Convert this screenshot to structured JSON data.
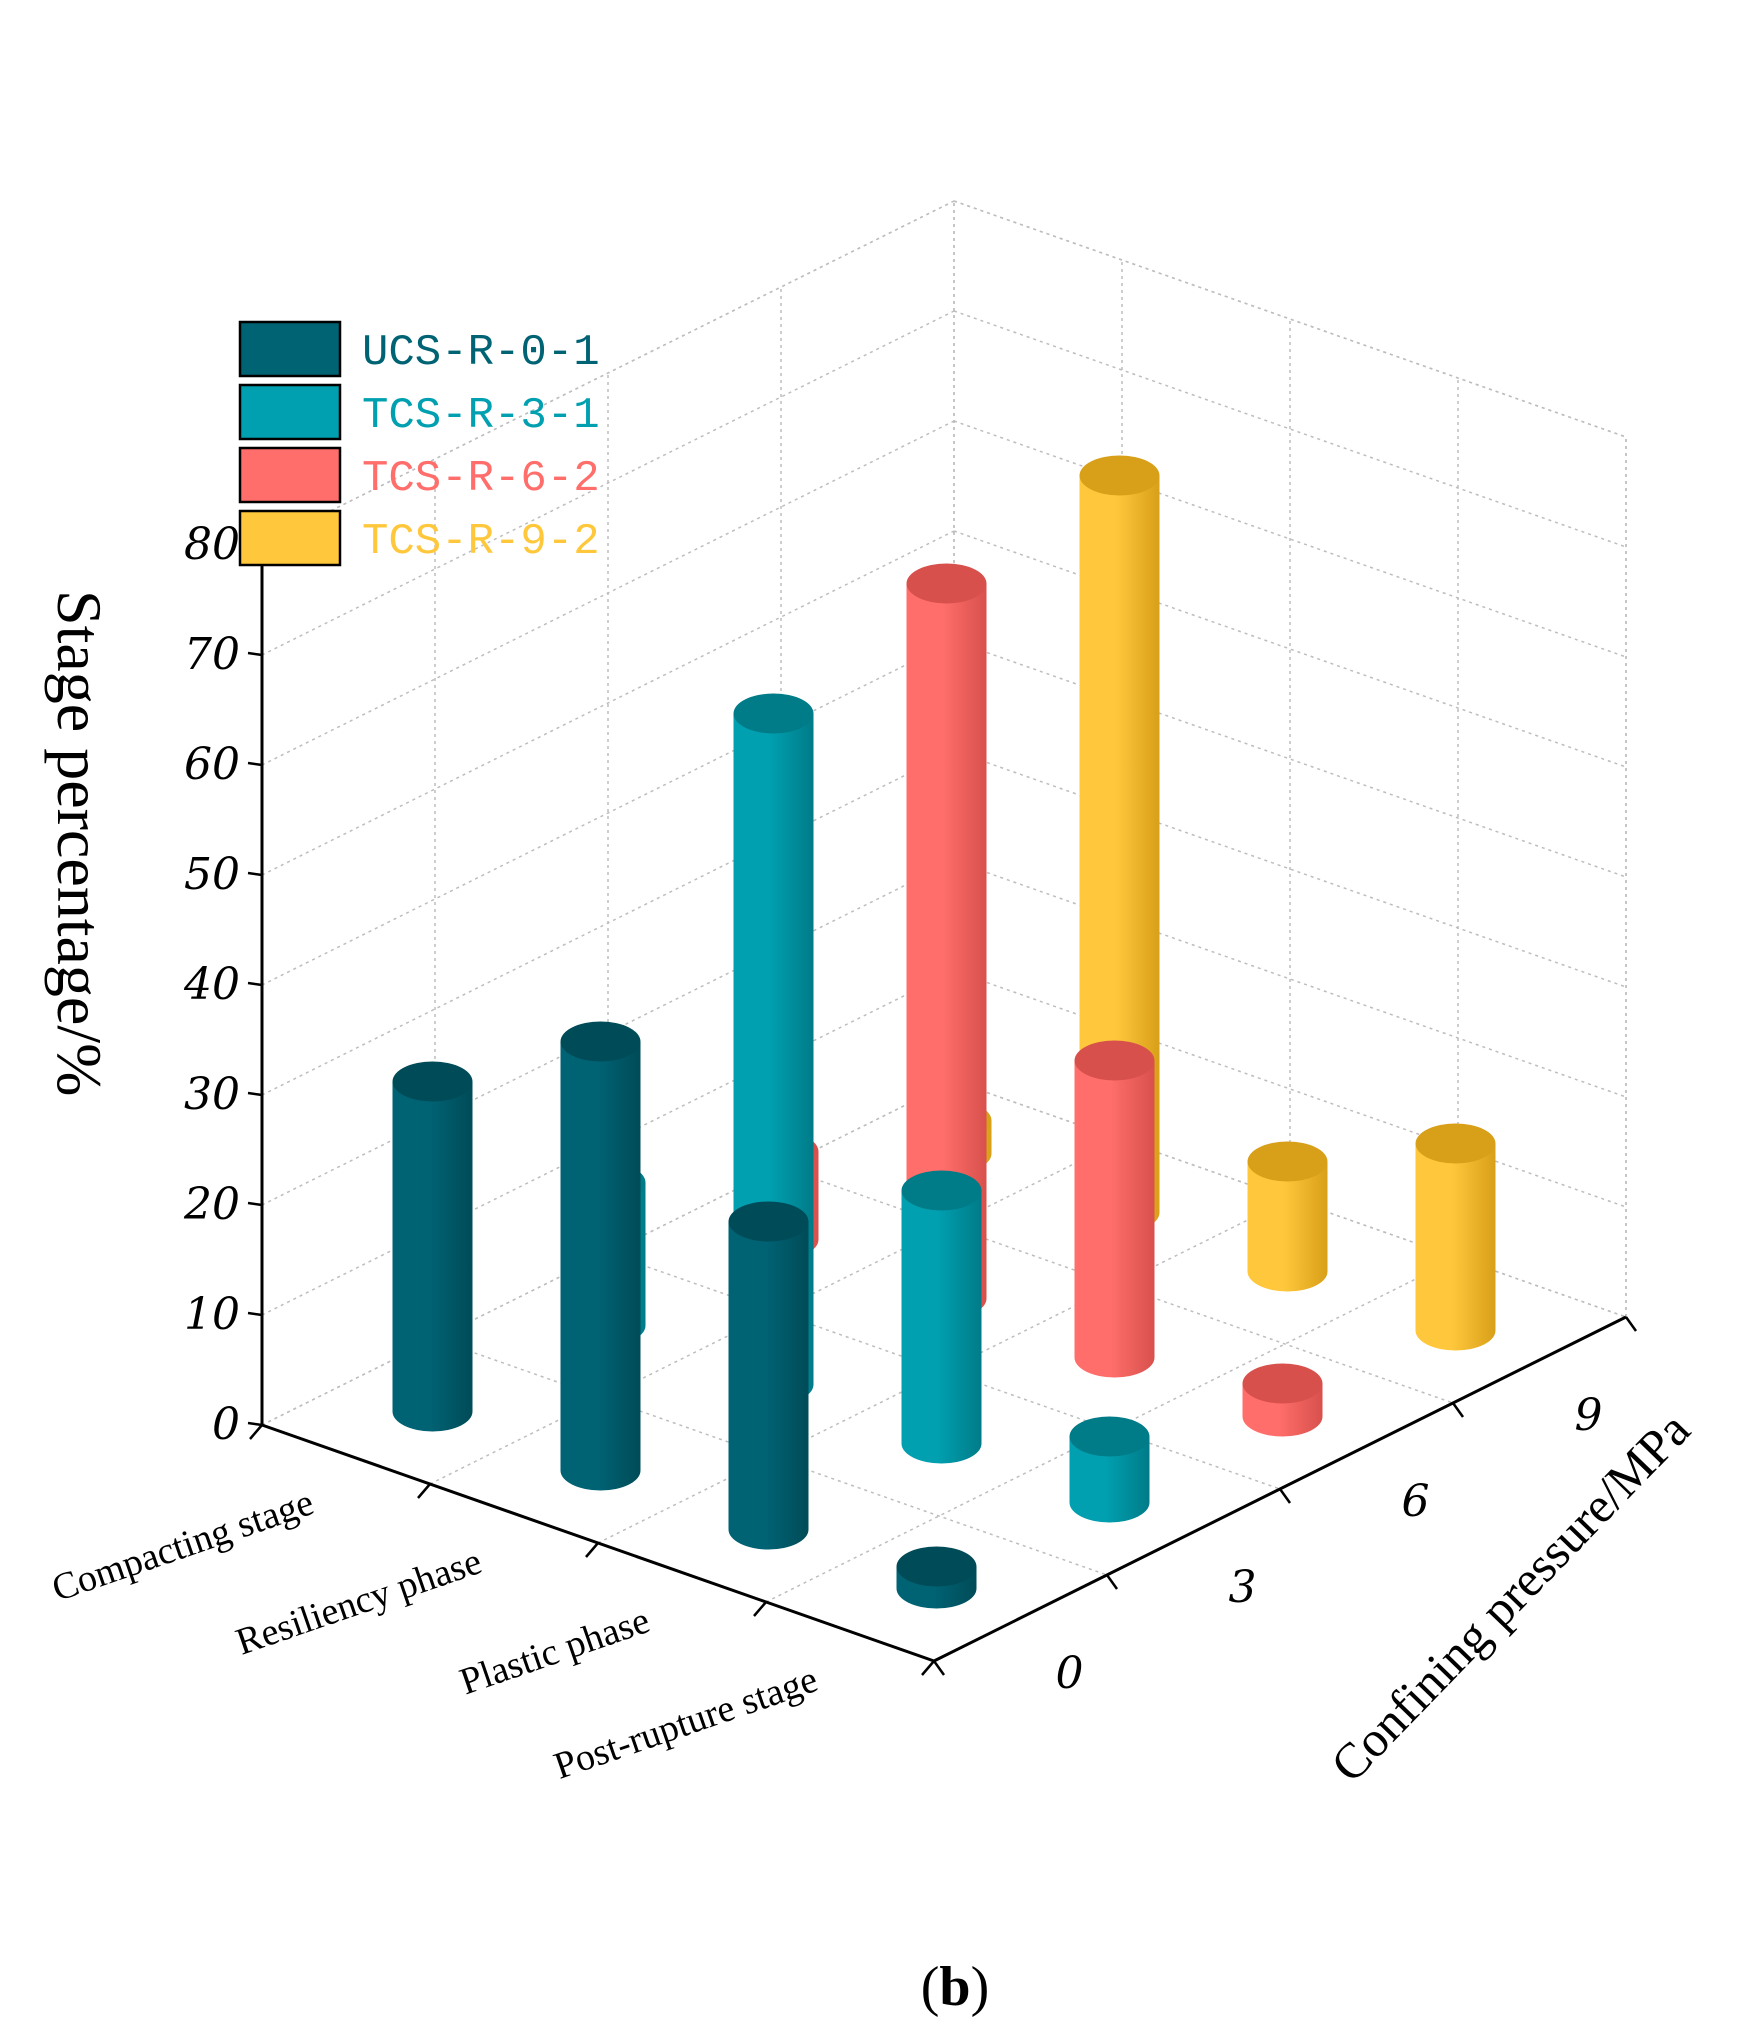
{
  "chart_data": {
    "type": "bar",
    "style": "3d-cylinder",
    "caption": {
      "open": "(",
      "bold": "b",
      "close": ")"
    },
    "zlabel": "Stage percentage/%",
    "ylabel": "Confining pressure/MPa",
    "zlim": [
      0,
      80
    ],
    "z_ticks": [
      "0",
      "10",
      "20",
      "30",
      "40",
      "50",
      "60",
      "70",
      "80"
    ],
    "y_ticks": [
      "0",
      "3",
      "6",
      "9"
    ],
    "categories": [
      "Compacting stage",
      "Resiliency phase",
      "Plastic phase",
      "Post-rupture stage"
    ],
    "series": [
      {
        "name": "UCS-R-0-1",
        "pressure": 0,
        "color": "#006374",
        "top_color": "#004b58",
        "values": [
          30,
          39,
          28,
          2
        ]
      },
      {
        "name": "TCS-R-3-1",
        "pressure": 3,
        "color": "#00A0B0",
        "top_color": "#007b88",
        "values": [
          13,
          61,
          23,
          6
        ]
      },
      {
        "name": "TCS-R-6-2",
        "pressure": 6,
        "color": "#FF6E6A",
        "top_color": "#d8504c",
        "values": [
          8,
          65,
          27,
          3
        ]
      },
      {
        "name": "TCS-R-9-2",
        "pressure": 9,
        "color": "#FFC83C",
        "top_color": "#d89f18",
        "values": [
          3,
          67,
          10,
          17
        ]
      }
    ]
  }
}
